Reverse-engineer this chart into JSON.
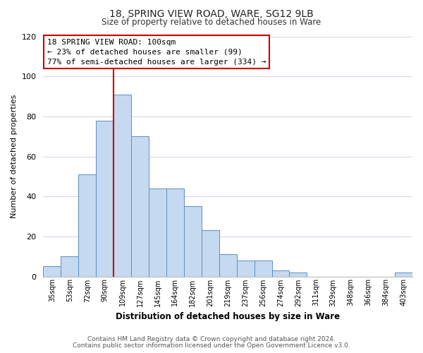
{
  "title": "18, SPRING VIEW ROAD, WARE, SG12 9LB",
  "subtitle": "Size of property relative to detached houses in Ware",
  "xlabel": "Distribution of detached houses by size in Ware",
  "ylabel": "Number of detached properties",
  "bar_labels": [
    "35sqm",
    "53sqm",
    "72sqm",
    "90sqm",
    "109sqm",
    "127sqm",
    "145sqm",
    "164sqm",
    "182sqm",
    "201sqm",
    "219sqm",
    "237sqm",
    "256sqm",
    "274sqm",
    "292sqm",
    "311sqm",
    "329sqm",
    "348sqm",
    "366sqm",
    "384sqm",
    "403sqm"
  ],
  "bar_values": [
    5,
    10,
    51,
    78,
    91,
    70,
    44,
    44,
    35,
    23,
    11,
    8,
    8,
    3,
    2,
    0,
    0,
    0,
    0,
    0,
    2
  ],
  "bar_color": "#c5d9f0",
  "bar_edge_color": "#5a8fc3",
  "ylim": [
    0,
    120
  ],
  "yticks": [
    0,
    20,
    40,
    60,
    80,
    100,
    120
  ],
  "vline_x": 4.0,
  "vline_color": "#cc0000",
  "annotation_title": "18 SPRING VIEW ROAD: 100sqm",
  "annotation_line1": "← 23% of detached houses are smaller (99)",
  "annotation_line2": "77% of semi-detached houses are larger (334) →",
  "annotation_box_color": "#ffffff",
  "annotation_box_edge": "#cc0000",
  "footer1": "Contains HM Land Registry data © Crown copyright and database right 2024.",
  "footer2": "Contains public sector information licensed under the Open Government Licence v3.0.",
  "background_color": "#ffffff",
  "grid_color": "#d0d8e8"
}
